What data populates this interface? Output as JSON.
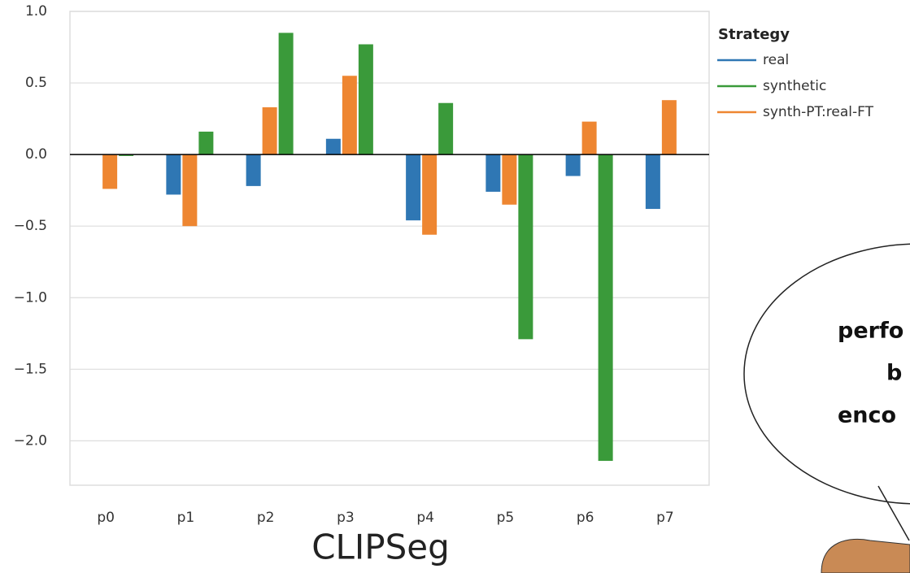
{
  "chart_data": {
    "type": "bar",
    "xlabel": "CLIPSeg",
    "legend_title": "Strategy",
    "categories": [
      "p0",
      "p1",
      "p2",
      "p3",
      "p4",
      "p5",
      "p6",
      "p7"
    ],
    "series": [
      {
        "name": "real",
        "color": "#2f77b4",
        "values": [
          null,
          -0.28,
          -0.22,
          0.11,
          -0.46,
          -0.26,
          -0.15,
          -0.38
        ]
      },
      {
        "name": "synthetic",
        "color": "#3a9a3a",
        "values": [
          -0.01,
          0.16,
          0.85,
          0.77,
          0.36,
          -1.29,
          -2.14,
          null
        ]
      },
      {
        "name": "synth-PT:real-FT",
        "color": "#ee8631",
        "values": [
          -0.24,
          -0.5,
          0.33,
          0.55,
          -0.56,
          -0.35,
          0.23,
          0.38
        ]
      }
    ],
    "ylim": [
      -2.31,
      1.0
    ],
    "yticks": [
      {
        "value": 1,
        "label": "1.0"
      },
      {
        "value": 0.5,
        "label": "0.5"
      },
      {
        "value": 0,
        "label": "0.0"
      },
      {
        "value": -0.5,
        "label": "−0.5"
      },
      {
        "value": -1,
        "label": "−1.0"
      },
      {
        "value": -1.5,
        "label": "−1.5"
      },
      {
        "value": -2,
        "label": "−2.0"
      }
    ],
    "grid": true,
    "annotations": [
      "perfo",
      "b",
      "enco"
    ]
  }
}
